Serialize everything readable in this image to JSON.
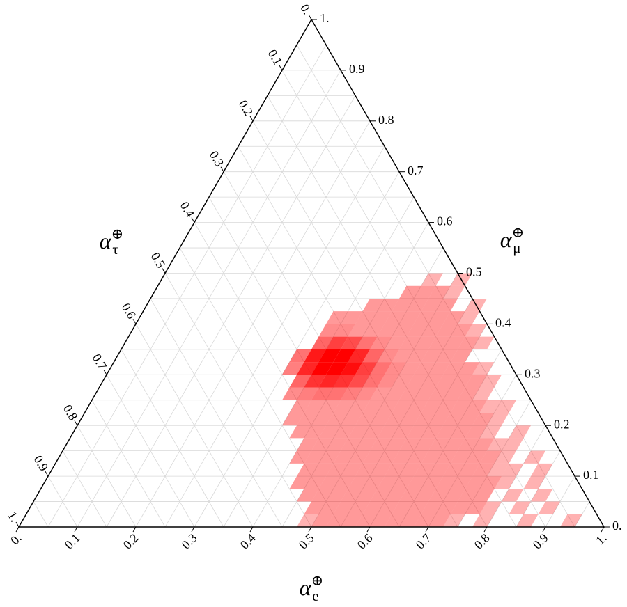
{
  "chart_data": {
    "type": "ternary",
    "color": "#ff0000",
    "grid": true,
    "gridlines": [
      0.05,
      0.1,
      0.15,
      0.2,
      0.25,
      0.3,
      0.35,
      0.4,
      0.45,
      0.5,
      0.55,
      0.6,
      0.65,
      0.7,
      0.75,
      0.8,
      0.85,
      0.9,
      0.95
    ],
    "axes": {
      "bottom": {
        "symbol": "α",
        "superscript": "⊕",
        "subscript": "e",
        "ticks": [
          {
            "value": 0,
            "label": "0."
          },
          0.1,
          0.2,
          0.3,
          0.4,
          0.5,
          0.6,
          0.7,
          0.8,
          0.9,
          {
            "value": 1,
            "label": "1."
          }
        ]
      },
      "right": {
        "symbol": "α",
        "superscript": "⊕",
        "subscript": "μ",
        "ticks": [
          {
            "value": 0,
            "label": "0."
          },
          0.1,
          0.2,
          0.3,
          0.4,
          0.5,
          0.6,
          0.7,
          0.8,
          0.9,
          {
            "value": 1,
            "label": "1."
          }
        ]
      },
      "left": {
        "symbol": "α",
        "superscript": "⊕",
        "subscript": "τ",
        "ticks": [
          {
            "value": 0,
            "label": "0."
          },
          0.1,
          0.2,
          0.3,
          0.4,
          0.5,
          0.6,
          0.7,
          0.8,
          0.9,
          {
            "value": 1,
            "label": "1."
          }
        ]
      }
    },
    "step": 0.025,
    "rows": [
      {
        "mu": 0,
        "e_start": 0.475,
        "density": [
          0.3,
          0.4,
          0.4,
          0.4,
          0.4,
          0.4,
          0.4,
          0.4,
          0.4,
          0.4,
          0.3,
          0,
          0.3,
          0,
          0,
          0.3,
          0,
          0,
          0.3
        ]
      },
      {
        "mu": 0.025,
        "e_start": 0.475,
        "density": [
          0.4,
          0.4,
          0.4,
          0.4,
          0.4,
          0.4,
          0.4,
          0.4,
          0.4,
          0.4,
          0.4,
          0.4,
          0.3,
          0,
          0.3,
          0,
          0.3
        ]
      },
      {
        "mu": 0.05,
        "e_start": 0.45,
        "density": [
          0.4,
          0.4,
          0.4,
          0.4,
          0.4,
          0.4,
          0.4,
          0.4,
          0.4,
          0.4,
          0.4,
          0.4,
          0.4,
          0,
          0.3,
          0,
          0.3
        ]
      },
      {
        "mu": 0.075,
        "e_start": 0.425,
        "density": [
          0.4,
          0.4,
          0.4,
          0.4,
          0.4,
          0.4,
          0.4,
          0.4,
          0.4,
          0.4,
          0.4,
          0.4,
          0.4,
          0.4,
          0.3,
          0,
          0.3
        ]
      },
      {
        "mu": 0.1,
        "e_start": 0.425,
        "density": [
          0.4,
          0.4,
          0.4,
          0.4,
          0.4,
          0.4,
          0.4,
          0.4,
          0.4,
          0.4,
          0.4,
          0.4,
          0.4,
          0.3,
          0.3,
          0,
          0.3
        ]
      },
      {
        "mu": 0.125,
        "e_start": 0.4,
        "density": [
          0.4,
          0.4,
          0.4,
          0.4,
          0.4,
          0.4,
          0.4,
          0.4,
          0.4,
          0.4,
          0.4,
          0.4,
          0.4,
          0.4,
          0.3,
          0,
          0.3
        ]
      },
      {
        "mu": 0.15,
        "e_start": 0.4,
        "density": [
          0.4,
          0.4,
          0.4,
          0.4,
          0.4,
          0.4,
          0.4,
          0.4,
          0.4,
          0.4,
          0.4,
          0.4,
          0.4,
          0.3,
          0.3
        ]
      },
      {
        "mu": 0.175,
        "e_start": 0.375,
        "density": [
          0.4,
          0.4,
          0.4,
          0.4,
          0.4,
          0.4,
          0.4,
          0.4,
          0.4,
          0.4,
          0.4,
          0.4,
          0.4,
          0.3,
          0,
          0.3
        ]
      },
      {
        "mu": 0.2,
        "e_start": 0.35,
        "density": [
          0.4,
          0.4,
          0.4,
          0.4,
          0.4,
          0.4,
          0.4,
          0.4,
          0.4,
          0.4,
          0.4,
          0.4,
          0.4,
          0.4,
          0.3
        ]
      },
      {
        "mu": 0.225,
        "e_start": 0.35,
        "density": [
          0.4,
          0.4,
          0.4,
          0.4,
          0.4,
          0.4,
          0.4,
          0.4,
          0.4,
          0.4,
          0.4,
          0.4,
          0.4,
          0.3,
          0.3
        ]
      },
      {
        "mu": 0.25,
        "e_start": 0.325,
        "density": [
          0.45,
          0.5,
          0.55,
          0.55,
          0.5,
          0.45,
          0.4,
          0.4,
          0.4,
          0.4,
          0.4,
          0.4,
          0.4,
          0.3
        ]
      },
      {
        "mu": 0.275,
        "e_start": 0.325,
        "density": [
          0.6,
          0.8,
          0.85,
          0.8,
          0.7,
          0.55,
          0.45,
          0.4,
          0.4,
          0.4,
          0.4,
          0.4,
          0.4,
          0.3
        ]
      },
      {
        "mu": 0.3,
        "e_start": 0.3,
        "density": [
          0.5,
          0.85,
          1,
          1,
          0.95,
          0.75,
          0.55,
          0.45,
          0.4,
          0.4,
          0.4,
          0.4,
          0.4,
          0.3
        ]
      },
      {
        "mu": 0.325,
        "e_start": 0.3,
        "density": [
          0.55,
          0.9,
          1,
          1,
          0.85,
          0.6,
          0.45,
          0.4,
          0.4,
          0.4,
          0.4,
          0.4
        ]
      },
      {
        "mu": 0.35,
        "e_start": 0.325,
        "density": [
          0.6,
          0.75,
          0.7,
          0.55,
          0.45,
          0.4,
          0.4,
          0.4,
          0.4,
          0.4,
          0.4,
          0.3
        ]
      },
      {
        "mu": 0.375,
        "e_start": 0.325,
        "density": [
          0.45,
          0.45,
          0.4,
          0.4,
          0.4,
          0.4,
          0.4,
          0.4,
          0.4,
          0.4,
          0.3
        ]
      },
      {
        "mu": 0.4,
        "e_start": 0.325,
        "density": [
          0.4,
          0.4,
          0.4,
          0.4,
          0.4,
          0.4,
          0.4,
          0.4,
          0.4,
          0.3
        ]
      },
      {
        "mu": 0.425,
        "e_start": 0.375,
        "density": [
          0.4,
          0.4,
          0.4,
          0.4,
          0.4,
          0.4,
          0,
          0.3
        ]
      },
      {
        "mu": 0.45,
        "e_start": 0.425,
        "density": [
          0.4,
          0.4,
          0.4,
          0.3
        ]
      },
      {
        "mu": 0.475,
        "e_start": 0.45,
        "density": [
          0.3,
          0,
          0.3
        ]
      }
    ]
  }
}
